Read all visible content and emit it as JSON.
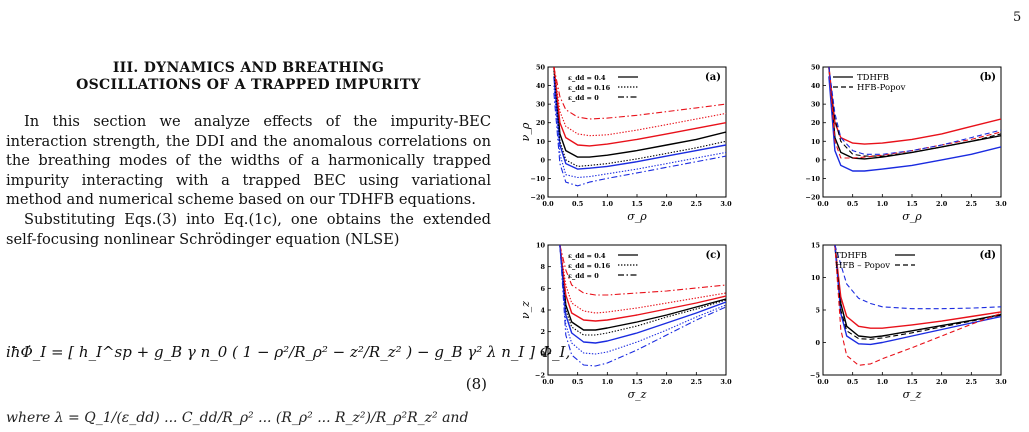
{
  "page_number": "5",
  "section": {
    "line1": "III.    DYNAMICS AND BREATHING",
    "line2": "OSCILLATIONS OF A TRAPPED IMPURITY"
  },
  "paragraph1": "In this section we analyze effects of the impurity-BEC interaction strength, the DDI and the anomalous correlations on the breathing modes of the widths of a harmonically trapped impurity interacting with a trapped BEC using variational method and numerical scheme based on our TDHFB equations.",
  "paragraph2": "Substituting Eqs.(3) into Eq.(1c), one obtains the extended self-focusing nonlinear Schrödinger equation (NLSE)",
  "equation": {
    "text": "iħΦ̇_I = [ h_I^sp + g_B γ n_0 ( 1 − ρ²/R_ρ² − z²/R_z² ) − g_B γ² λ n_I ] Φ_I,",
    "number": "(8)"
  },
  "cut_line": "where λ = Q_1/(ε_dd) ... C_dd/R_ρ² ... (R_ρ² ... R_z²)/R_ρ²R_z² and",
  "figure": {
    "panels": [
      {
        "label": "(a)",
        "ylabel": "ν_ρ",
        "xlabel": "σ_ρ",
        "yticks": [
          "50",
          "40",
          "30",
          "20",
          "10",
          "0",
          "−10",
          "−20"
        ],
        "xticks": [
          "0.0",
          "0.5",
          "1.0",
          "1.5",
          "2.0",
          "2.5",
          "3.0"
        ],
        "legend": [
          "ε_dd = 0.4",
          "ε_dd = 0.16",
          "ε_dd = 0"
        ]
      },
      {
        "label": "(b)",
        "ylabel": "",
        "xlabel": "σ_ρ",
        "yticks": [
          "50",
          "40",
          "30",
          "20",
          "10",
          "0",
          "−10",
          "−20"
        ],
        "xticks": [
          "0.0",
          "0.5",
          "1.0",
          "1.5",
          "2.0",
          "2.5",
          "3.0"
        ],
        "legend": [
          "TDHFB",
          "HFB-Popov"
        ]
      },
      {
        "label": "(c)",
        "ylabel": "ν_z",
        "xlabel": "σ_z",
        "yticks": [
          "10",
          "8",
          "6",
          "4",
          "2",
          "0",
          "−2"
        ],
        "xticks": [
          "0.0",
          "0.5",
          "1.0",
          "1.5",
          "2.0",
          "2.5",
          "3.0"
        ],
        "legend": [
          "ε_dd = 0.4",
          "ε_dd = 0.16",
          "ε_dd = 0"
        ]
      },
      {
        "label": "(d)",
        "ylabel": "",
        "xlabel": "σ_z",
        "yticks": [
          "15",
          "10",
          "5",
          "0",
          "−5"
        ],
        "xticks": [
          "0.0",
          "0.5",
          "1.0",
          "1.5",
          "2.0",
          "2.5",
          "3.0"
        ],
        "legend": [
          "TDHFB",
          "HFB – Popov"
        ]
      }
    ],
    "colors": {
      "black": "#000000",
      "red": "#e8111a",
      "blue": "#1a2be0"
    }
  },
  "chart_data": [
    {
      "type": "line",
      "panel": "(a)",
      "xlabel": "σ_ρ",
      "ylabel": "ν_ρ",
      "xlim": [
        0,
        3
      ],
      "ylim": [
        -20,
        50
      ],
      "series": [
        {
          "name": "ε_dd = 0.4",
          "color": "black",
          "style": "solid",
          "x": [
            0.1,
            0.2,
            0.3,
            0.5,
            0.7,
            1.0,
            1.5,
            2.0,
            2.5,
            3.0
          ],
          "y": [
            50,
            14,
            5,
            1.5,
            1.5,
            2.5,
            5,
            8,
            11,
            15
          ]
        },
        {
          "color": "red",
          "style": "solid",
          "x": [
            0.1,
            0.2,
            0.3,
            0.5,
            0.7,
            1.0,
            1.5,
            2.0,
            2.5,
            3.0
          ],
          "y": [
            50,
            20,
            12,
            8,
            7.5,
            8.5,
            11,
            14,
            17,
            20
          ]
        },
        {
          "color": "blue",
          "style": "solid",
          "x": [
            0.1,
            0.2,
            0.3,
            0.5,
            0.7,
            1.0,
            1.5,
            2.0,
            2.5,
            3.0
          ],
          "y": [
            45,
            8,
            -2,
            -5,
            -4.5,
            -3.5,
            -1,
            2,
            5,
            8
          ]
        },
        {
          "name": "ε_dd = 0.16",
          "color": "black",
          "style": "dotted",
          "x": [
            0.1,
            0.2,
            0.3,
            0.5,
            0.7,
            1.0,
            1.5,
            2.0,
            2.5,
            3.0
          ],
          "y": [
            48,
            10,
            0,
            -3.5,
            -3,
            -2,
            0.5,
            3.5,
            6.5,
            10
          ]
        },
        {
          "color": "red",
          "style": "dotted",
          "x": [
            0.1,
            0.2,
            0.3,
            0.5,
            0.7,
            1.0,
            1.5,
            2.0,
            2.5,
            3.0
          ],
          "y": [
            50,
            26,
            18,
            14,
            13,
            13.5,
            16,
            19,
            22,
            25
          ]
        },
        {
          "color": "blue",
          "style": "dotted",
          "x": [
            0.1,
            0.2,
            0.3,
            0.5,
            0.7,
            1.0,
            1.5,
            2.0,
            2.5,
            3.0
          ],
          "y": [
            40,
            3,
            -8,
            -9.5,
            -9,
            -7.5,
            -5,
            -2,
            1,
            4
          ]
        },
        {
          "name": "ε_dd = 0",
          "color": "red",
          "style": "dashdot",
          "x": [
            0.1,
            0.2,
            0.3,
            0.5,
            0.7,
            1.0,
            1.5,
            2.0,
            2.5,
            3.0
          ],
          "y": [
            50,
            34,
            27,
            23,
            22,
            22.5,
            24,
            26,
            28,
            30
          ]
        },
        {
          "color": "blue",
          "style": "dashdot",
          "x": [
            0.1,
            0.2,
            0.3,
            0.5,
            0.7,
            1.0,
            1.5,
            2.0,
            2.5,
            3.0
          ],
          "y": [
            36,
            -2,
            -12,
            -14,
            -12,
            -10,
            -7,
            -4,
            -1,
            2
          ]
        }
      ]
    },
    {
      "type": "line",
      "panel": "(b)",
      "xlabel": "σ_ρ",
      "xlim": [
        0,
        3
      ],
      "ylim": [
        -20,
        50
      ],
      "series": [
        {
          "name": "TDHFB",
          "color": "black",
          "style": "solid",
          "x": [
            0.1,
            0.2,
            0.3,
            0.5,
            0.7,
            1.0,
            1.5,
            2.0,
            2.5,
            3.0
          ],
          "y": [
            50,
            12,
            4,
            1,
            0.5,
            1.5,
            4,
            7,
            10,
            13
          ]
        },
        {
          "color": "red",
          "style": "solid",
          "x": [
            0.1,
            0.2,
            0.3,
            0.5,
            0.7,
            1.0,
            1.5,
            2.0,
            2.5,
            3.0
          ],
          "y": [
            50,
            20,
            12,
            9,
            8.5,
            9,
            11,
            14,
            18,
            22
          ]
        },
        {
          "color": "blue",
          "style": "solid",
          "x": [
            0.1,
            0.2,
            0.3,
            0.5,
            0.7,
            1.0,
            1.5,
            2.0,
            2.5,
            3.0
          ],
          "y": [
            45,
            5,
            -3,
            -6,
            -6,
            -5,
            -3,
            0,
            3,
            7
          ]
        },
        {
          "name": "HFB-Popov",
          "color": "black",
          "style": "dashed",
          "x": [
            0.1,
            0.2,
            0.3,
            0.5,
            0.7,
            1.0,
            1.5,
            2.0,
            2.5,
            3.0
          ],
          "y": [
            50,
            22,
            10,
            3,
            2,
            2,
            4,
            7,
            10,
            14
          ]
        },
        {
          "color": "red",
          "style": "dashed",
          "x": [
            0.1,
            0.2,
            0.3,
            0.5,
            0.7,
            1.0,
            1.5,
            2.0,
            2.5,
            3.0
          ],
          "y": [
            50,
            10,
            1,
            1,
            1.5,
            2.5,
            5,
            8,
            11,
            15
          ]
        },
        {
          "color": "blue",
          "style": "dashed",
          "x": [
            0.1,
            0.2,
            0.3,
            0.5,
            0.7,
            1.0,
            1.5,
            2.0,
            2.5,
            3.0
          ],
          "y": [
            50,
            25,
            12,
            5,
            3,
            3,
            5,
            8,
            12,
            16
          ]
        }
      ]
    },
    {
      "type": "line",
      "panel": "(c)",
      "xlabel": "σ_z",
      "ylabel": "ν_z",
      "xlim": [
        0,
        3
      ],
      "ylim": [
        -3,
        10
      ],
      "series": [
        {
          "name": "ε_dd = 0.4",
          "color": "black",
          "style": "solid",
          "x": [
            0.2,
            0.3,
            0.4,
            0.6,
            0.8,
            1.0,
            1.5,
            2.0,
            2.5,
            3.0
          ],
          "y": [
            10,
            4,
            2.3,
            1.5,
            1.5,
            1.7,
            2.3,
            3.0,
            3.8,
            4.6
          ]
        },
        {
          "color": "red",
          "style": "solid",
          "x": [
            0.2,
            0.3,
            0.4,
            0.6,
            0.8,
            1.0,
            1.5,
            2.0,
            2.5,
            3.0
          ],
          "y": [
            10,
            5,
            3.2,
            2.5,
            2.4,
            2.5,
            3.0,
            3.6,
            4.2,
            4.9
          ]
        },
        {
          "color": "blue",
          "style": "solid",
          "x": [
            0.2,
            0.3,
            0.4,
            0.6,
            0.8,
            1.0,
            1.5,
            2.0,
            2.5,
            3.0
          ],
          "y": [
            10,
            3,
            1.2,
            0.3,
            0.2,
            0.4,
            1.2,
            2.2,
            3.2,
            4.3
          ]
        },
        {
          "name": "ε_dd = 0.16",
          "color": "black",
          "style": "dotted",
          "x": [
            0.2,
            0.3,
            0.4,
            0.6,
            0.8,
            1.0,
            1.5,
            2.0,
            2.5,
            3.0
          ],
          "y": [
            10,
            3.5,
            1.8,
            1.0,
            1.0,
            1.2,
            1.9,
            2.8,
            3.6,
            4.5
          ]
        },
        {
          "color": "red",
          "style": "dotted",
          "x": [
            0.2,
            0.3,
            0.4,
            0.6,
            0.8,
            1.0,
            1.5,
            2.0,
            2.5,
            3.0
          ],
          "y": [
            10,
            6,
            4.2,
            3.4,
            3.2,
            3.3,
            3.7,
            4.2,
            4.7,
            5.2
          ]
        },
        {
          "color": "blue",
          "style": "dotted",
          "x": [
            0.2,
            0.3,
            0.4,
            0.6,
            0.8,
            1.0,
            1.5,
            2.0,
            2.5,
            3.0
          ],
          "y": [
            10,
            2,
            0.2,
            -0.8,
            -0.9,
            -0.7,
            0.3,
            1.5,
            2.8,
            4.0
          ]
        },
        {
          "name": "ε_dd = 0",
          "color": "red",
          "style": "dashdot",
          "x": [
            0.2,
            0.3,
            0.4,
            0.6,
            0.8,
            1.0,
            1.5,
            2.0,
            2.5,
            3.0
          ],
          "y": [
            10,
            7.5,
            6,
            5.2,
            5.0,
            5.0,
            5.2,
            5.4,
            5.7,
            6.0
          ]
        },
        {
          "color": "blue",
          "style": "dashdot",
          "x": [
            0.2,
            0.3,
            0.4,
            0.6,
            0.8,
            1.0,
            1.5,
            2.0,
            2.5,
            3.0
          ],
          "y": [
            10,
            1,
            -1,
            -2,
            -2.1,
            -1.8,
            -0.5,
            1,
            2.5,
            3.8
          ]
        }
      ]
    },
    {
      "type": "line",
      "panel": "(d)",
      "xlabel": "σ_z",
      "xlim": [
        0,
        3
      ],
      "ylim": [
        -5,
        15
      ],
      "series": [
        {
          "name": "TDHFB",
          "color": "black",
          "style": "solid",
          "x": [
            0.2,
            0.3,
            0.4,
            0.6,
            0.8,
            1.0,
            1.5,
            2.0,
            2.5,
            3.0
          ],
          "y": [
            15,
            6,
            2.5,
            1,
            0.8,
            1,
            1.8,
            2.6,
            3.4,
            4.3
          ]
        },
        {
          "color": "red",
          "style": "solid",
          "x": [
            0.2,
            0.3,
            0.4,
            0.6,
            0.8,
            1.0,
            1.5,
            2.0,
            2.5,
            3.0
          ],
          "y": [
            15,
            7,
            4,
            2.5,
            2.2,
            2.2,
            2.7,
            3.3,
            4,
            4.7
          ]
        },
        {
          "color": "blue",
          "style": "solid",
          "x": [
            0.2,
            0.3,
            0.4,
            0.6,
            0.8,
            1.0,
            1.5,
            2.0,
            2.5,
            3.0
          ],
          "y": [
            15,
            4.5,
            1,
            -0.2,
            -0.3,
            0,
            1,
            2,
            3,
            4
          ]
        },
        {
          "name": "HFB – Popov",
          "color": "black",
          "style": "dashed",
          "x": [
            0.2,
            0.3,
            0.4,
            0.6,
            0.8,
            1.0,
            1.5,
            2.0,
            2.5,
            3.0
          ],
          "y": [
            15,
            5,
            1.8,
            0.6,
            0.5,
            0.7,
            1.5,
            2.4,
            3.3,
            4.2
          ]
        },
        {
          "color": "red",
          "style": "dashed",
          "x": [
            0.2,
            0.3,
            0.4,
            0.6,
            0.8,
            1.0,
            1.5,
            2.0,
            2.5,
            3.0
          ],
          "y": [
            15,
            2,
            -2,
            -3.5,
            -3.3,
            -2.5,
            -0.8,
            1,
            2.8,
            4.5
          ]
        },
        {
          "color": "blue",
          "style": "dashed",
          "x": [
            0.2,
            0.3,
            0.4,
            0.6,
            0.8,
            1.0,
            1.5,
            2.0,
            2.5,
            3.0
          ],
          "y": [
            15,
            12,
            9,
            6.8,
            6,
            5.5,
            5.2,
            5.2,
            5.3,
            5.5
          ]
        }
      ]
    }
  ]
}
